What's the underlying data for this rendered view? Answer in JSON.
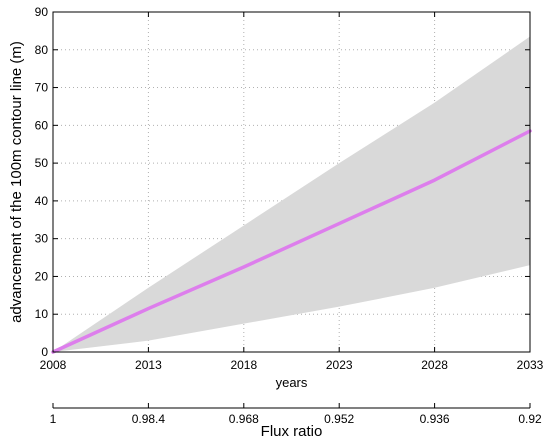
{
  "chart_data": {
    "type": "line",
    "xlabel": "years",
    "ylabel": "advancement of the 100m contour line (m)",
    "secondary_xlabel": "Flux ratio",
    "xlim": [
      2008,
      2033
    ],
    "ylim": [
      0,
      90
    ],
    "grid": true,
    "x_ticks": [
      "2008",
      "2013",
      "2018",
      "2023",
      "2028",
      "2033"
    ],
    "y_ticks": [
      "0",
      "10",
      "20",
      "30",
      "40",
      "50",
      "60",
      "70",
      "80",
      "90"
    ],
    "secondary_x_ticks": [
      "1",
      "0.98.4",
      "0.968",
      "0.952",
      "0.936",
      "0.92"
    ],
    "series": [
      {
        "x": [
          2008,
          2013,
          2018,
          2023,
          2028,
          2033
        ],
        "values": [
          0,
          11.5,
          22.5,
          34,
          45.5,
          58.5
        ]
      }
    ],
    "band": {
      "x": [
        2008,
        2013,
        2018,
        2023,
        2028,
        2033
      ],
      "lower": [
        0,
        3,
        7.5,
        12,
        17,
        23
      ],
      "upper": [
        0,
        17,
        33.5,
        50,
        66,
        83.5
      ]
    },
    "colors": {
      "line": "#dd7eec",
      "band": "#d9d9d9",
      "grid": "#b0b0b0"
    }
  }
}
